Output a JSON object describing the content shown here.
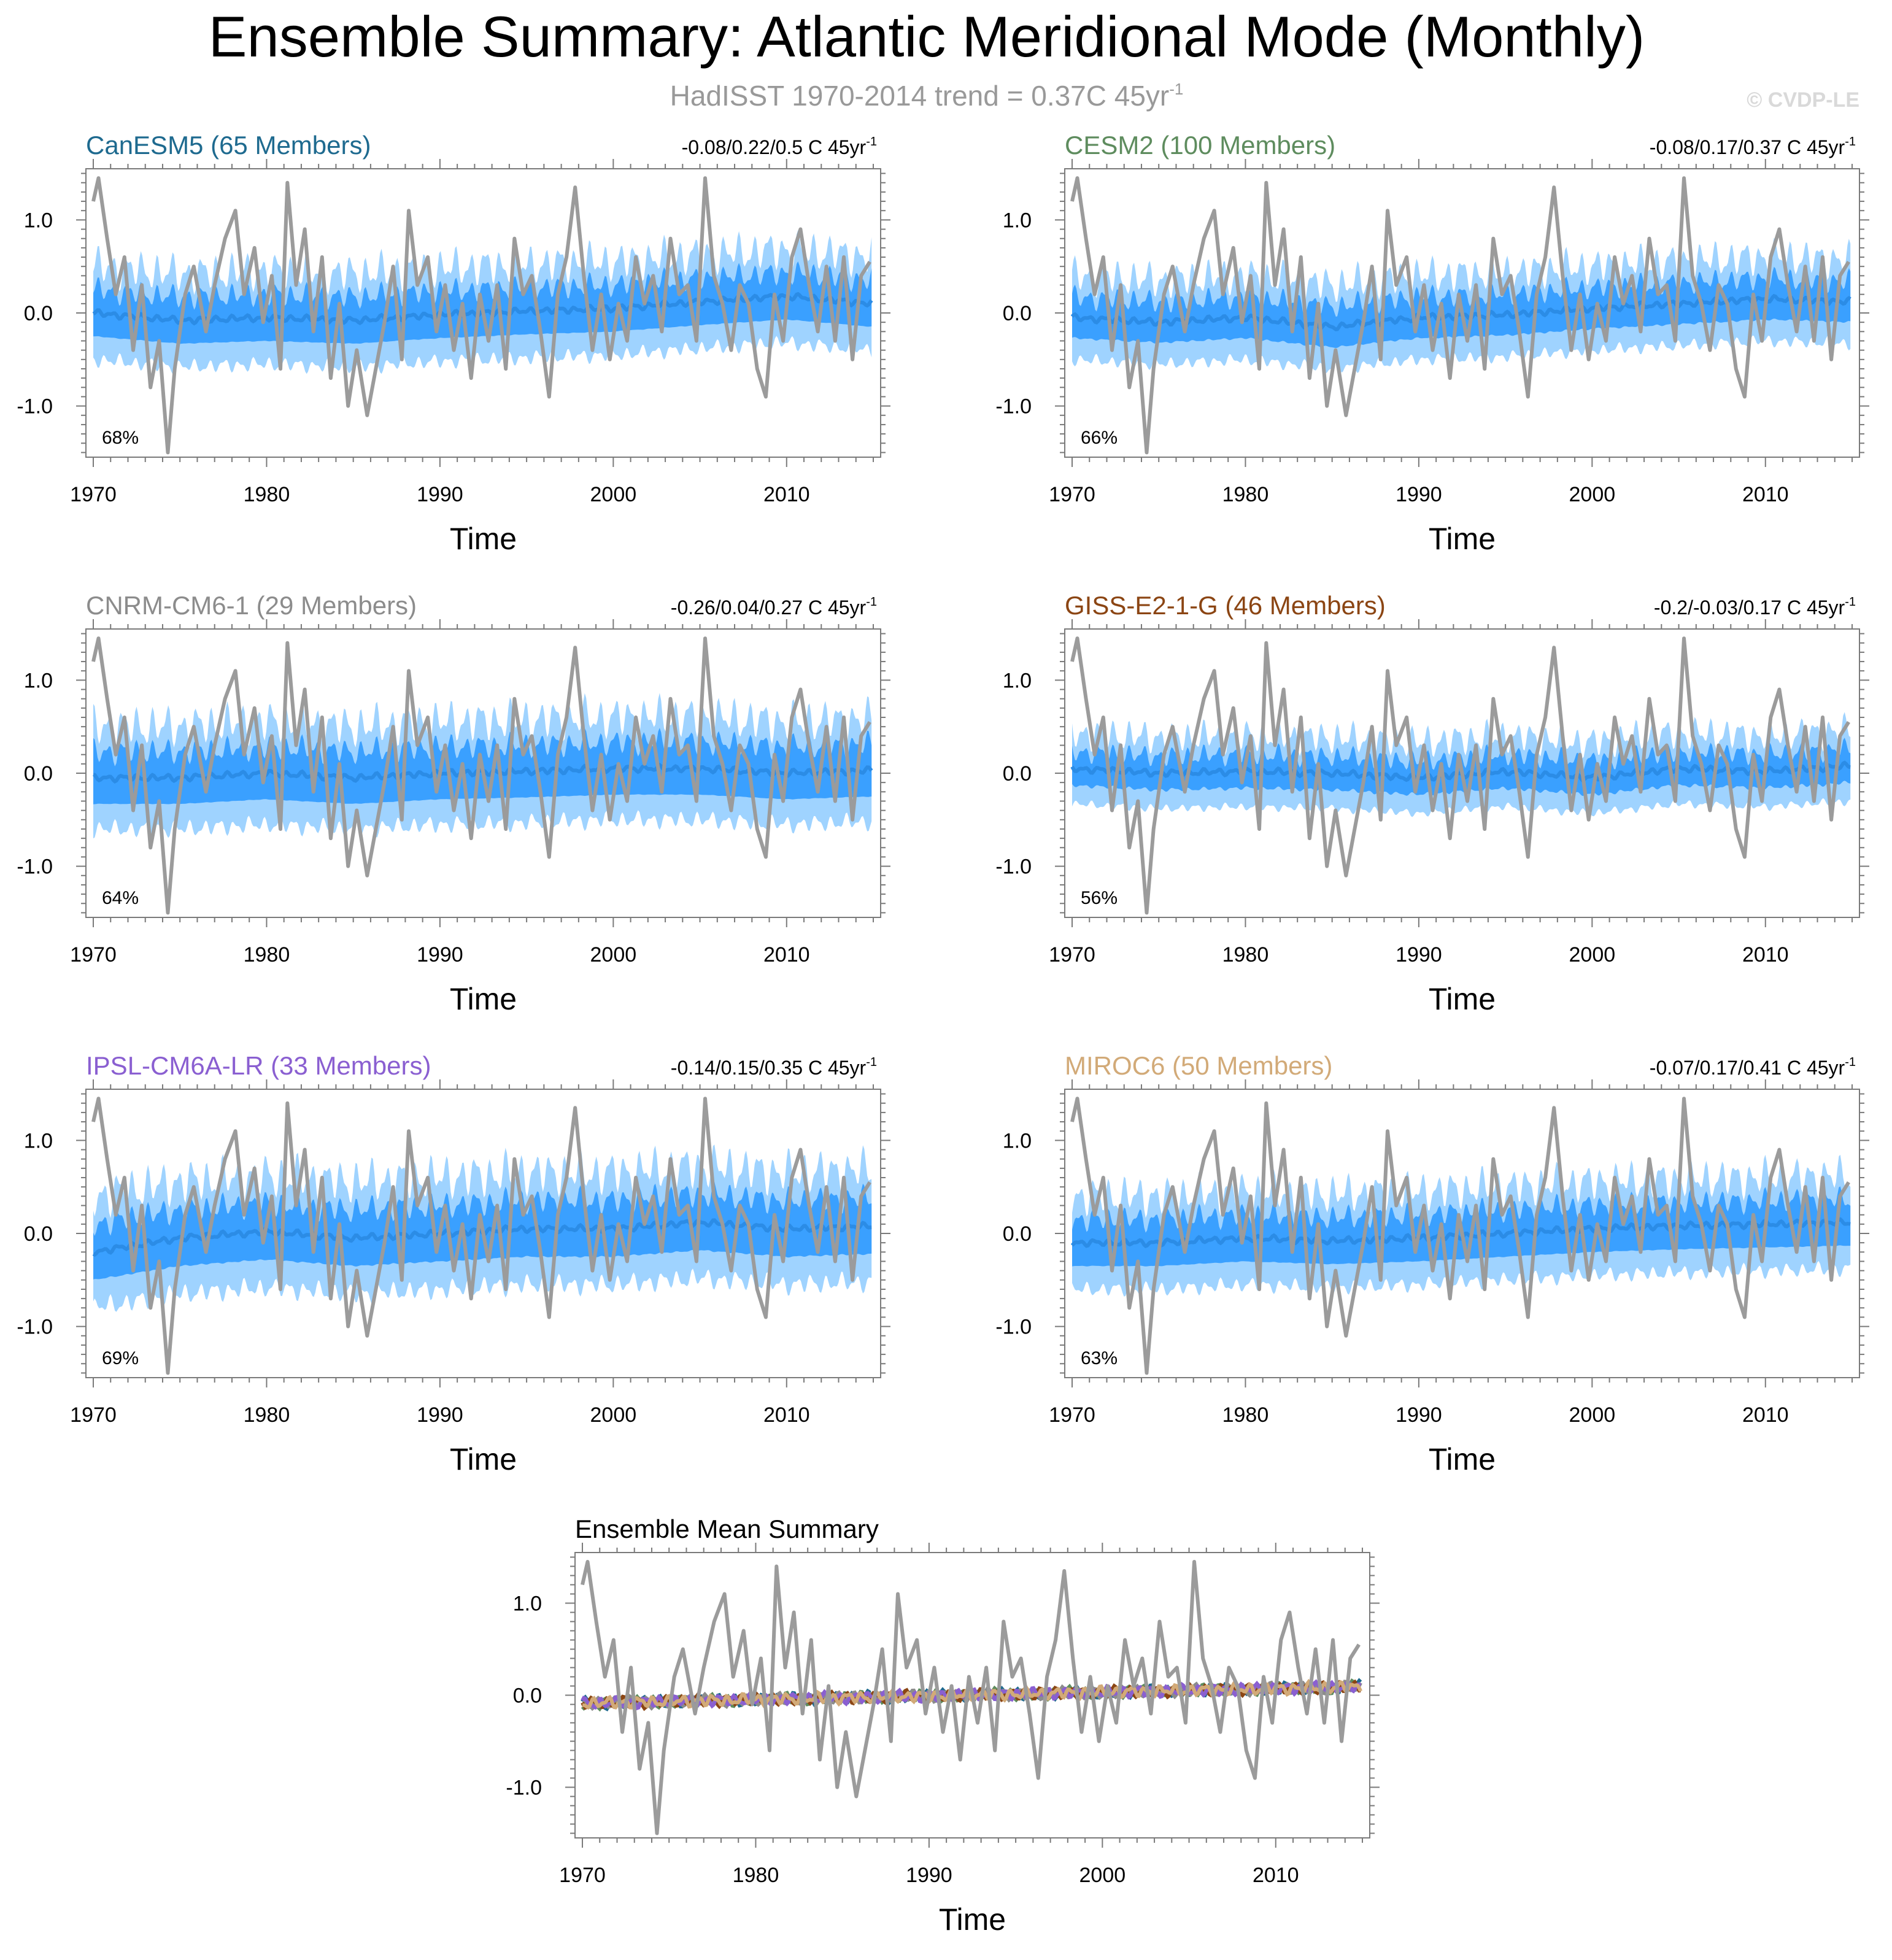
{
  "title": "Ensemble Summary: Atlantic Meridional Mode (Monthly)",
  "subtitle": {
    "text": "HadISST 1970-2014 trend = 0.37C 45yr",
    "superscript": "-1",
    "color": "#999999"
  },
  "copyright": "© CVDP-LE",
  "colors": {
    "observations": "#9b9b9b",
    "ensemble_mean": "#2b8ce6",
    "spread_inner": "#3aa0ff",
    "spread_outer": "#9fd3ff"
  },
  "chart_data": [
    {
      "type": "area",
      "title": "CanESM5 (65 Members)",
      "title_color": "#1e6a8f",
      "trend": "-0.08/0.22/0.5 C 45yr",
      "trend_superscript": "-1",
      "percent": "68%",
      "xlabel": "Time",
      "xlim": [
        1970,
        2015
      ],
      "ylim": [
        -1.55,
        1.55
      ],
      "xticks": [
        "1970",
        "1980",
        "1990",
        "2000",
        "2010"
      ],
      "yticks": [
        "1.0",
        "0.0",
        "-1.0"
      ],
      "ensemble_mean_x": [
        1970,
        1975,
        1980,
        1985,
        1990,
        1995,
        2000,
        2005,
        2010,
        2015
      ],
      "ensemble_mean": [
        0.0,
        -0.08,
        -0.05,
        -0.08,
        -0.02,
        0.02,
        0.05,
        0.12,
        0.18,
        0.1
      ],
      "inner_half_width": 0.25,
      "outer_half_width": 0.5
    },
    {
      "type": "area",
      "title": "CESM2 (100 Members)",
      "title_color": "#5e8c5e",
      "trend": "-0.08/0.17/0.37 C 45yr",
      "trend_superscript": "-1",
      "percent": "66%",
      "xlabel": "Time",
      "xlim": [
        1970,
        2015
      ],
      "ylim": [
        -1.55,
        1.55
      ],
      "xticks": [
        "1970",
        "1980",
        "1990",
        "2000",
        "2010"
      ],
      "yticks": [
        "1.0",
        "0.0",
        "-1.0"
      ],
      "ensemble_mean_x": [
        1970,
        1975,
        1980,
        1985,
        1990,
        1995,
        2000,
        2005,
        2010,
        2015
      ],
      "ensemble_mean": [
        -0.05,
        -0.1,
        -0.05,
        -0.15,
        -0.05,
        -0.02,
        0.05,
        0.1,
        0.15,
        0.12
      ],
      "inner_half_width": 0.22,
      "outer_half_width": 0.45
    },
    {
      "type": "area",
      "title": "CNRM-CM6-1 (29 Members)",
      "title_color": "#8c8c8c",
      "trend": "-0.26/0.04/0.27 C 45yr",
      "trend_superscript": "-1",
      "percent": "64%",
      "xlabel": "Time",
      "xlim": [
        1970,
        2015
      ],
      "ylim": [
        -1.55,
        1.55
      ],
      "xticks": [
        "1970",
        "1980",
        "1990",
        "2000",
        "2010"
      ],
      "yticks": [
        "1.0",
        "0.0",
        "-1.0"
      ],
      "ensemble_mean_x": [
        1970,
        1975,
        1980,
        1985,
        1990,
        1995,
        2000,
        2005,
        2010,
        2015
      ],
      "ensemble_mean": [
        -0.05,
        -0.05,
        0.0,
        -0.05,
        0.0,
        0.02,
        0.05,
        0.05,
        0.0,
        0.03
      ],
      "inner_half_width": 0.28,
      "outer_half_width": 0.55
    },
    {
      "type": "area",
      "title": "GISS-E2-1-G (46 Members)",
      "title_color": "#8b4513",
      "trend": "-0.2/-0.03/0.17 C 45yr",
      "trend_superscript": "-1",
      "percent": "56%",
      "xlabel": "Time",
      "xlim": [
        1970,
        2015
      ],
      "ylim": [
        -1.55,
        1.55
      ],
      "xticks": [
        "1970",
        "1980",
        "1990",
        "2000",
        "2010"
      ],
      "yticks": [
        "1.0",
        "0.0",
        "-1.0"
      ],
      "ensemble_mean_x": [
        1970,
        1975,
        1980,
        1985,
        1990,
        1995,
        2000,
        2005,
        2010,
        2015
      ],
      "ensemble_mean": [
        0.05,
        0.0,
        0.02,
        0.0,
        -0.05,
        0.02,
        -0.05,
        0.05,
        0.02,
        0.08
      ],
      "inner_half_width": 0.18,
      "outer_half_width": 0.38
    },
    {
      "type": "area",
      "title": "IPSL-CM6A-LR (33 Members)",
      "title_color": "#8a5fd1",
      "trend": "-0.14/0.15/0.35 C 45yr",
      "trend_superscript": "-1",
      "percent": "69%",
      "xlabel": "Time",
      "xlim": [
        1970,
        2015
      ],
      "ylim": [
        -1.55,
        1.55
      ],
      "xticks": [
        "1970",
        "1980",
        "1990",
        "2000",
        "2010"
      ],
      "yticks": [
        "1.0",
        "0.0",
        "-1.0"
      ],
      "ensemble_mean_x": [
        1970,
        1975,
        1980,
        1985,
        1990,
        1995,
        2000,
        2005,
        2010,
        2015
      ],
      "ensemble_mean": [
        -0.2,
        -0.05,
        0.02,
        -0.05,
        0.0,
        0.05,
        0.05,
        0.12,
        0.05,
        0.08
      ],
      "inner_half_width": 0.3,
      "outer_half_width": 0.6
    },
    {
      "type": "area",
      "title": "MIROC6 (50 Members)",
      "title_color": "#d2aa78",
      "trend": "-0.07/0.17/0.41 C 45yr",
      "trend_superscript": "-1",
      "percent": "63%",
      "xlabel": "Time",
      "xlim": [
        1970,
        2015
      ],
      "ylim": [
        -1.55,
        1.55
      ],
      "xticks": [
        "1970",
        "1980",
        "1990",
        "2000",
        "2010"
      ],
      "yticks": [
        "1.0",
        "0.0",
        "-1.0"
      ],
      "ensemble_mean_x": [
        1970,
        1975,
        1980,
        1985,
        1990,
        1995,
        2000,
        2005,
        2010,
        2015
      ],
      "ensemble_mean": [
        -0.1,
        -0.1,
        -0.05,
        -0.08,
        -0.05,
        0.0,
        0.05,
        0.08,
        0.1,
        0.12
      ],
      "inner_half_width": 0.25,
      "outer_half_width": 0.5
    },
    {
      "type": "line",
      "title": "Ensemble Mean Summary",
      "title_color": "#000000",
      "xlabel": "Time",
      "xlim": [
        1970,
        2015
      ],
      "ylim": [
        -1.55,
        1.55
      ],
      "xticks": [
        "1970",
        "1980",
        "1990",
        "2000",
        "2010"
      ],
      "yticks": [
        "1.0",
        "0.0",
        "-1.0"
      ],
      "series": [
        {
          "name": "CanESM5",
          "color": "#1e6a8f"
        },
        {
          "name": "CESM2",
          "color": "#5e8c5e"
        },
        {
          "name": "CNRM-CM6-1",
          "color": "#8c8c8c"
        },
        {
          "name": "GISS-E2-1-G",
          "color": "#8b4513"
        },
        {
          "name": "IPSL-CM6A-LR",
          "color": "#8a5fd1"
        },
        {
          "name": "MIROC6",
          "color": "#d2aa78"
        }
      ]
    }
  ],
  "observations": {
    "x": [
      1970.0,
      1970.3,
      1970.8,
      1971.3,
      1971.8,
      1972.3,
      1972.8,
      1973.3,
      1973.8,
      1974.3,
      1974.7,
      1975.3,
      1975.8,
      1976.5,
      1977.0,
      1977.6,
      1978.2,
      1978.7,
      1979.3,
      1979.8,
      1980.3,
      1980.8,
      1981.2,
      1981.7,
      1982.2,
      1982.7,
      1983.2,
      1983.7,
      1984.2,
      1984.7,
      1985.2,
      1985.8,
      1986.3,
      1986.8,
      1987.3,
      1987.8,
      1988.2,
      1988.7,
      1989.3,
      1989.8,
      1990.3,
      1990.8,
      1991.3,
      1991.8,
      1992.3,
      1992.8,
      1993.3,
      1993.8,
      1994.3,
      1994.8,
      1995.3,
      1995.8,
      1996.3,
      1996.8,
      1997.3,
      1997.8,
      1998.3,
      1998.8,
      1999.3,
      1999.8,
      2000.3,
      2000.8,
      2001.3,
      2001.8,
      2002.3,
      2002.8,
      2003.3,
      2003.8,
      2004.3,
      2004.8,
      2005.3,
      2005.8,
      2006.3,
      2006.8,
      2007.3,
      2007.8,
      2008.3,
      2008.8,
      2009.3,
      2009.8,
      2010.3,
      2010.8,
      2011.3,
      2011.8,
      2012.3,
      2012.8,
      2013.3,
      2013.8,
      2014.3,
      2014.8
    ],
    "y": [
      1.2,
      1.45,
      0.8,
      0.2,
      0.6,
      -0.4,
      0.3,
      -0.8,
      -0.3,
      -1.5,
      -0.6,
      0.2,
      0.5,
      -0.2,
      0.3,
      0.8,
      1.1,
      0.2,
      0.7,
      -0.1,
      0.4,
      -0.6,
      1.4,
      0.3,
      0.9,
      -0.2,
      0.6,
      -0.7,
      0.1,
      -1.0,
      -0.4,
      -1.1,
      -0.6,
      -0.1,
      0.5,
      -0.5,
      1.1,
      0.3,
      0.6,
      -0.2,
      0.3,
      -0.4,
      0.1,
      -0.7,
      0.2,
      -0.3,
      0.3,
      -0.6,
      0.8,
      0.2,
      0.4,
      -0.2,
      -0.9,
      0.2,
      0.6,
      1.35,
      0.4,
      -0.4,
      0.2,
      -0.5,
      0.1,
      -0.3,
      0.6,
      0.1,
      0.4,
      -0.2,
      0.8,
      0.2,
      0.3,
      -0.3,
      1.45,
      0.4,
      0.1,
      -0.4,
      0.3,
      0.1,
      -0.6,
      -0.9,
      0.2,
      -0.3,
      0.6,
      0.9,
      0.3,
      -0.2,
      0.5,
      -0.3,
      0.6,
      -0.5,
      0.4,
      0.55
    ]
  }
}
